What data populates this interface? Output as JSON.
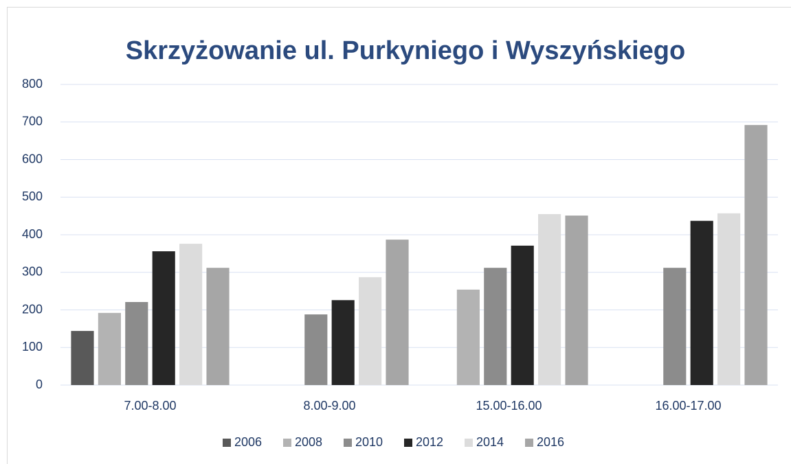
{
  "chart_data": {
    "type": "bar",
    "title": "Skrzyżowanie ul. Purkyniego i Wyszyńskiego",
    "categories": [
      "7.00-8.00",
      "8.00-9.00",
      "15.00-16.00",
      "16.00-17.00"
    ],
    "series": [
      {
        "name": "2006",
        "color": "#595959",
        "values": [
          144,
          null,
          null,
          null
        ]
      },
      {
        "name": "2008",
        "color": "#b3b3b3",
        "values": [
          192,
          null,
          254,
          null
        ]
      },
      {
        "name": "2010",
        "color": "#8c8c8c",
        "values": [
          221,
          188,
          312,
          312
        ]
      },
      {
        "name": "2012",
        "color": "#262626",
        "values": [
          356,
          226,
          371,
          437
        ]
      },
      {
        "name": "2014",
        "color": "#dcdcdc",
        "values": [
          376,
          287,
          455,
          457
        ]
      },
      {
        "name": "2016",
        "color": "#a6a6a6",
        "values": [
          312,
          387,
          451,
          692
        ]
      }
    ],
    "ylim": [
      0,
      800
    ],
    "yticks": [
      0,
      100,
      200,
      300,
      400,
      500,
      600,
      700,
      800
    ],
    "grid": true,
    "legend": "bottom"
  }
}
